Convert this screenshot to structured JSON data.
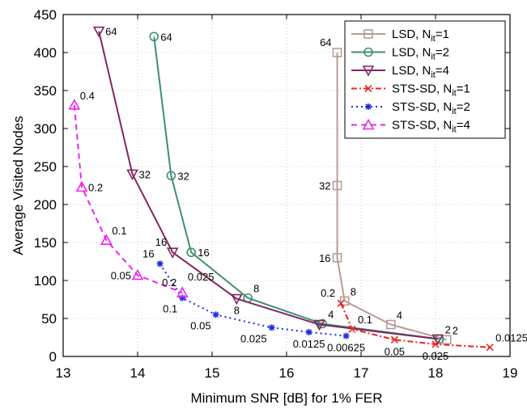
{
  "chart_data": {
    "type": "line",
    "xlabel": "Minimum SNR [dB] for 1% FER",
    "ylabel": "Average Visited Nodes",
    "xlim": [
      13,
      19
    ],
    "ylim": [
      0,
      450
    ],
    "x_ticks": [
      13,
      14,
      15,
      16,
      17,
      18,
      19
    ],
    "y_ticks": [
      0,
      50,
      100,
      150,
      200,
      250,
      300,
      350,
      400,
      450
    ],
    "grid": true,
    "legend_position": "top-right",
    "series": [
      {
        "name": "LSD, N_it=1",
        "legend_main": "LSD, N",
        "legend_sub": "it",
        "legend_tail": "=1",
        "color": "#b89c96",
        "style": "solid",
        "marker": "square",
        "x": [
          16.68,
          16.68,
          16.68,
          16.78,
          17.4,
          18.15
        ],
        "y": [
          400,
          225,
          130,
          73,
          42,
          22
        ],
        "labels": [
          "64",
          "32",
          "16",
          "8",
          "4",
          "2"
        ],
        "label_pos": [
          "left-above",
          "left",
          "left",
          "right-above",
          "right-above",
          "right-above"
        ]
      },
      {
        "name": "LSD, N_it=2",
        "legend_main": "LSD, N",
        "legend_sub": "it",
        "legend_tail": "=2",
        "color": "#3f8f6f",
        "style": "solid",
        "marker": "circle",
        "x": [
          14.22,
          14.45,
          14.72,
          15.48,
          16.48,
          18.05
        ],
        "y": [
          421,
          238,
          137,
          77,
          43,
          23
        ],
        "labels": [
          "64",
          "32",
          "16",
          "8",
          "4",
          "2"
        ],
        "label_pos": [
          "right",
          "right",
          "right",
          "right-above",
          "right-above",
          "right-above"
        ]
      },
      {
        "name": "LSD, N_it=4",
        "legend_main": "LSD, N",
        "legend_sub": "it",
        "legend_tail": "=4",
        "color": "#7d2860",
        "style": "solid",
        "marker": "triangle-down",
        "x": [
          13.48,
          13.93,
          14.47,
          15.33,
          16.44,
          18.03
        ],
        "y": [
          428,
          240,
          137,
          76,
          42,
          23
        ],
        "labels": [
          "64",
          "32",
          "16",
          "8",
          "",
          ""
        ],
        "label_pos": [
          "right",
          "right",
          "left-above",
          "below",
          "",
          ""
        ]
      },
      {
        "name": "STS-SD, N_it=1",
        "legend_main": "STS-SD, N",
        "legend_sub": "it",
        "legend_tail": "=1",
        "color": "#e8261f",
        "style": "dashdot",
        "marker": "x",
        "x": [
          16.73,
          16.88,
          17.45,
          18.0,
          18.73
        ],
        "y": [
          70,
          36,
          22,
          16,
          12
        ],
        "labels": [
          "0.2",
          "0.1",
          "0.05",
          "0.025",
          "0.0125"
        ],
        "label_pos": [
          "left-above",
          "right-above",
          "below",
          "below",
          "right-above"
        ]
      },
      {
        "name": "STS-SD, N_it=2",
        "legend_main": "STS-SD, N",
        "legend_sub": "it",
        "legend_tail": "=2",
        "color": "#1e2ee0",
        "style": "dotted",
        "marker": "star",
        "x": [
          14.3,
          14.6,
          15.05,
          15.8,
          16.3,
          16.8
        ],
        "y": [
          122,
          77,
          55,
          38,
          32,
          27
        ],
        "labels": [
          "16",
          "0.1",
          "0.05",
          "0.025",
          "0.0125",
          "0.00625"
        ],
        "label_pos": [
          "left-above",
          "left-below",
          "left-below",
          "left-below",
          "below",
          "below"
        ]
      },
      {
        "name": "STS-SD, N_it=4",
        "legend_main": "STS-SD, N",
        "legend_sub": "it",
        "legend_tail": "=4",
        "color": "#ee22ee",
        "style": "dashed",
        "marker": "triangle-up",
        "x": [
          13.15,
          13.25,
          13.58,
          14.0,
          14.6
        ],
        "y": [
          331,
          223,
          153,
          107,
          84
        ],
        "labels": [
          "0.4",
          "0.2",
          "0.1",
          "0.05",
          "0.2"
        ],
        "label_pos": [
          "right-above",
          "right",
          "right-above",
          "left",
          "left-above"
        ]
      }
    ],
    "extra_annotations": [
      {
        "text": "0.025",
        "x": 14.85,
        "y": 100
      }
    ]
  }
}
